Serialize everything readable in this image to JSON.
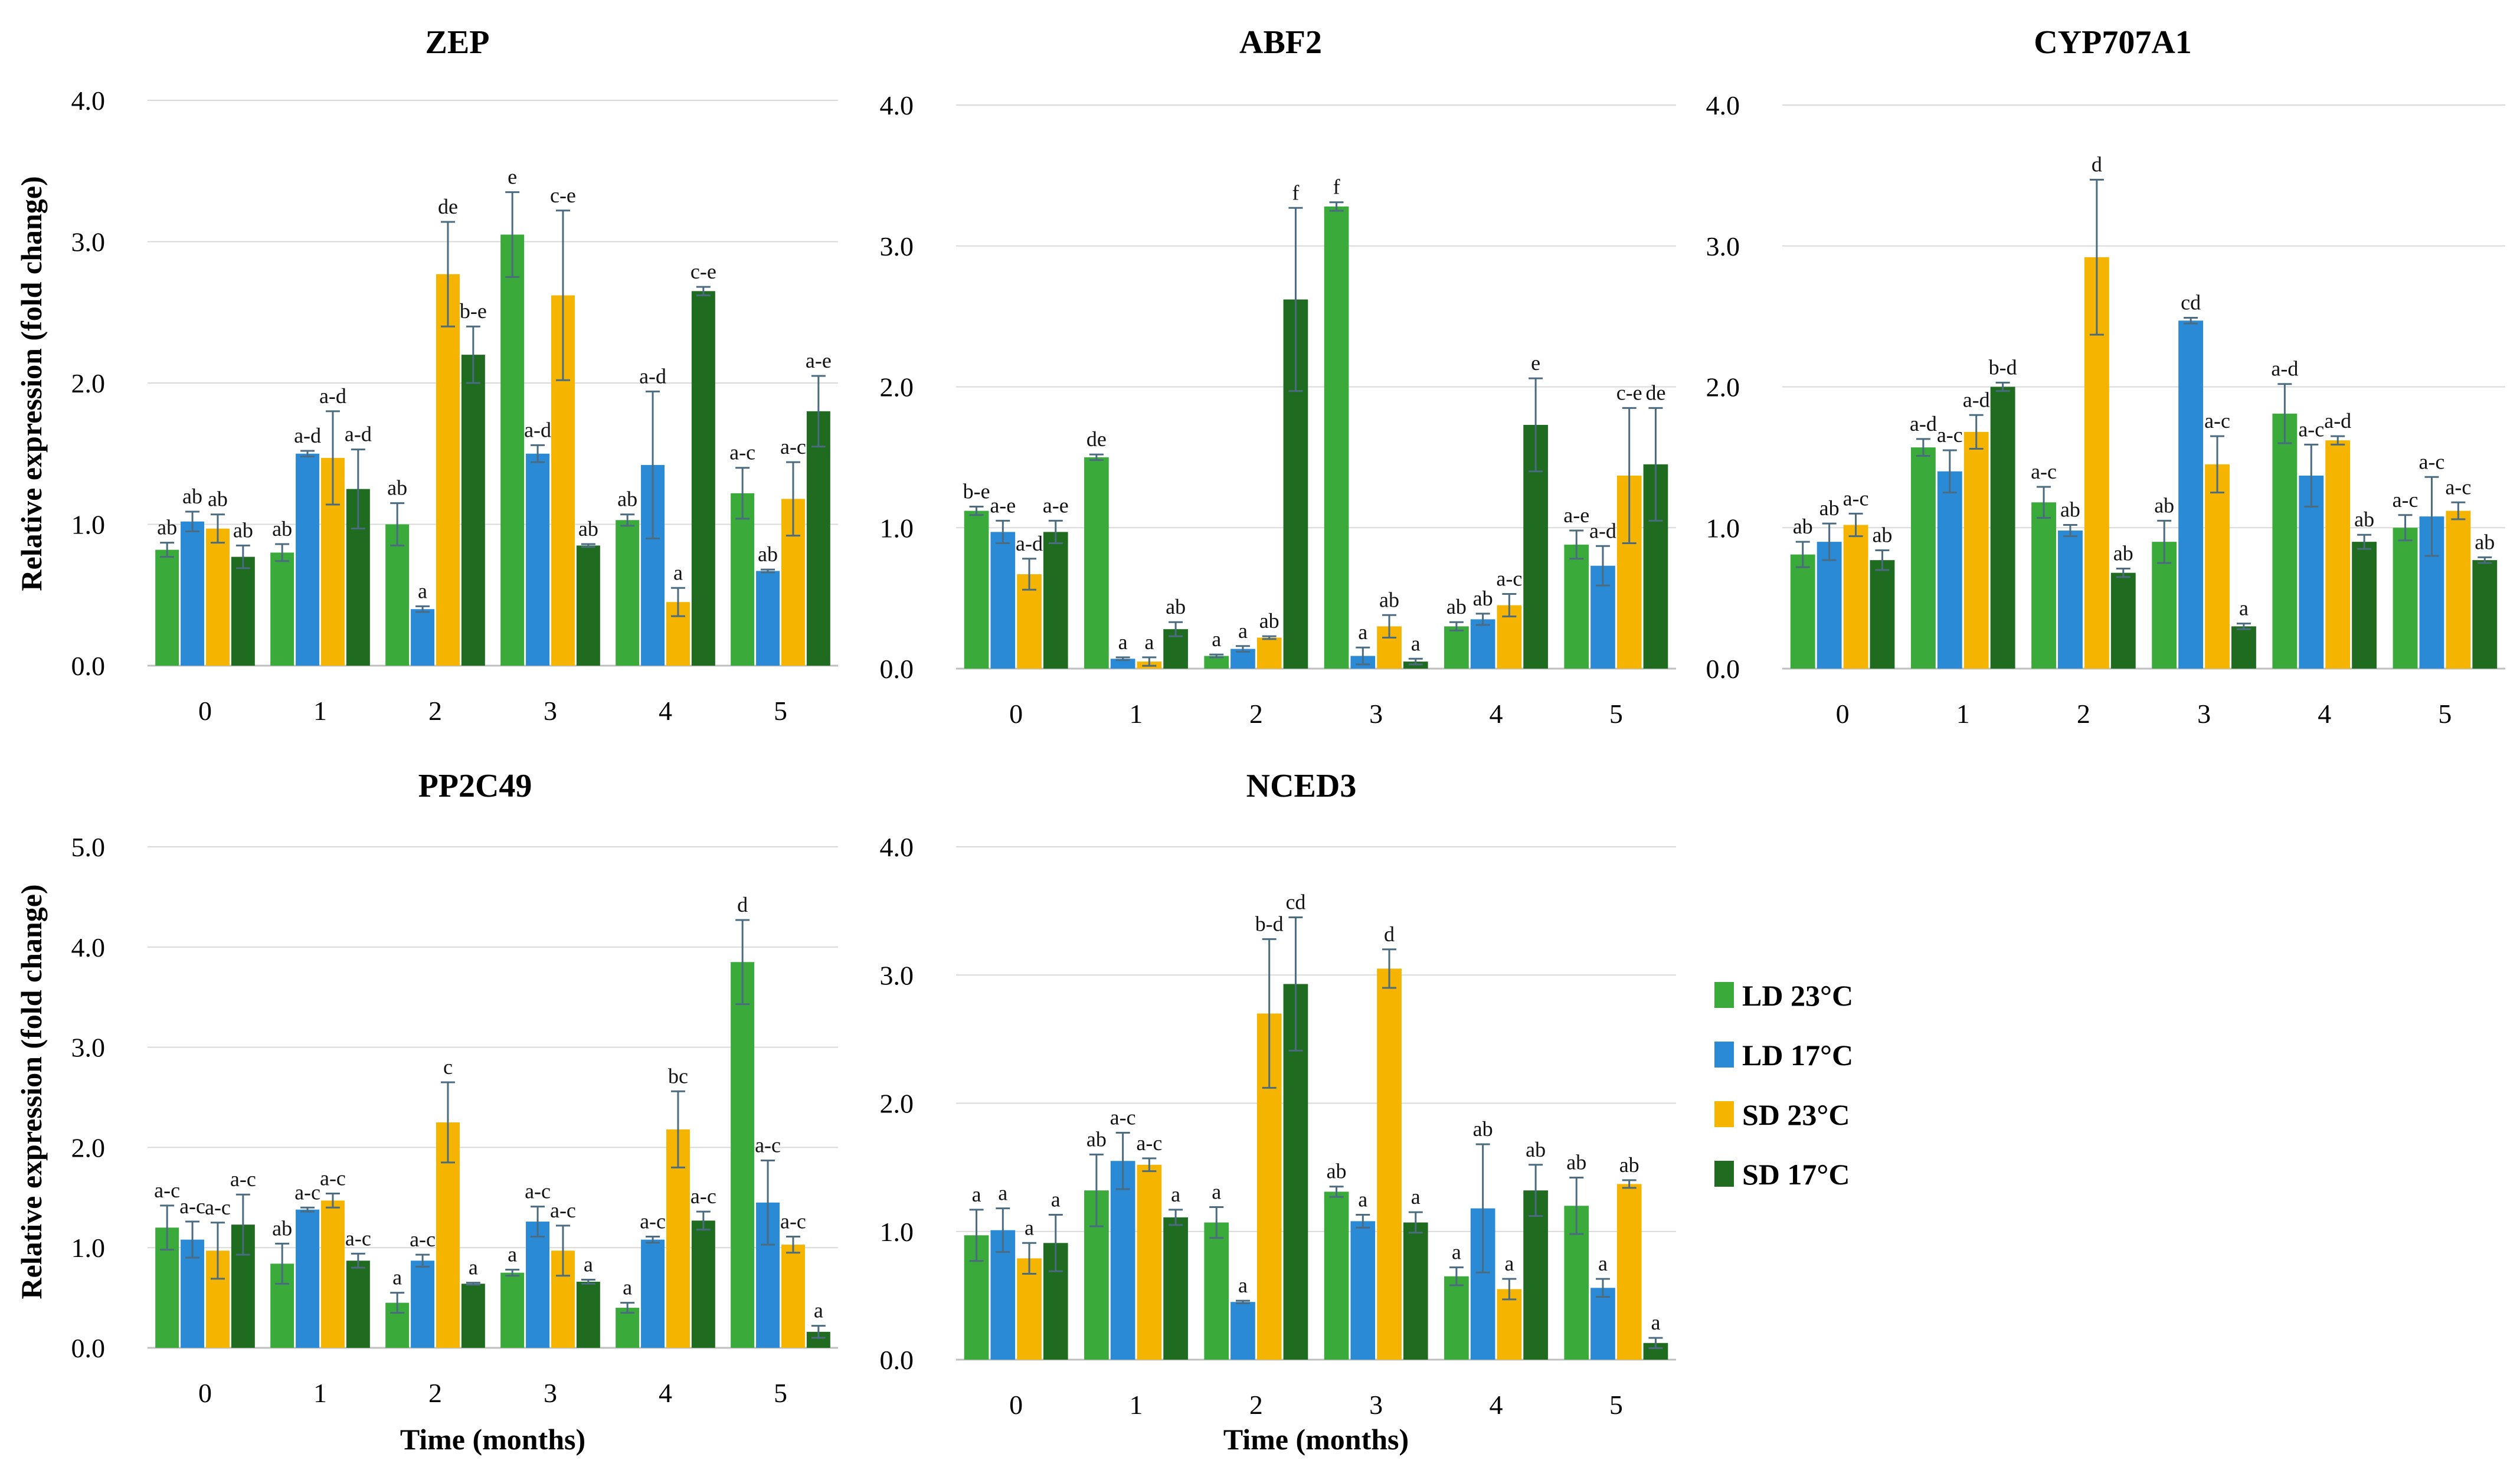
{
  "figure": {
    "legend": [
      {
        "label": "LD 23°C",
        "color": "#3aaa3a"
      },
      {
        "label": "LD 17°C",
        "color": "#2b8ad6"
      },
      {
        "label": "SD 23°C",
        "color": "#f5b400"
      },
      {
        "label": "SD 17°C",
        "color": "#1f6b1f"
      }
    ],
    "ylabel": "Relative expression (fold change)",
    "xlabel": "Time (months)"
  },
  "chart_data": [
    {
      "type": "bar",
      "title": "ZEP",
      "categories": [
        "0",
        "1",
        "2",
        "3",
        "4",
        "5"
      ],
      "ylim": [
        0,
        4
      ],
      "yticks": [
        "0.0",
        "1.0",
        "2.0",
        "3.0",
        "4.0"
      ],
      "xlabel": "",
      "ylabel": "Relative expression (fold change)",
      "series": [
        {
          "name": "LD 23°C",
          "values": [
            0.82,
            0.8,
            1.0,
            3.05,
            1.03,
            1.22
          ],
          "errors": [
            0.05,
            0.06,
            0.15,
            0.3,
            0.04,
            0.18
          ],
          "labels": [
            "ab",
            "ab",
            "ab",
            "e",
            "ab",
            "a-c"
          ]
        },
        {
          "name": "LD 17°C",
          "values": [
            1.02,
            1.5,
            0.4,
            1.5,
            1.42,
            0.67
          ],
          "errors": [
            0.07,
            0.02,
            0.02,
            0.06,
            0.52,
            0.01
          ],
          "labels": [
            "ab",
            "a-d",
            "a",
            "a-d",
            "a-d",
            "ab"
          ]
        },
        {
          "name": "SD 23°C",
          "values": [
            0.97,
            1.47,
            2.77,
            2.62,
            0.45,
            1.18
          ],
          "errors": [
            0.1,
            0.33,
            0.37,
            0.6,
            0.1,
            0.26
          ],
          "labels": [
            "ab",
            "a-d",
            "de",
            "c-e",
            "a",
            "a-c"
          ]
        },
        {
          "name": "SD 17°C",
          "values": [
            0.77,
            1.25,
            2.2,
            0.85,
            2.65,
            1.8
          ],
          "errors": [
            0.08,
            0.28,
            0.2,
            0.01,
            0.03,
            0.25
          ],
          "labels": [
            "ab",
            "a-d",
            "b-e",
            "ab",
            "c-e",
            "a-e"
          ]
        }
      ]
    },
    {
      "type": "bar",
      "title": "ABF2",
      "categories": [
        "0",
        "1",
        "2",
        "3",
        "4",
        "5"
      ],
      "ylim": [
        0,
        4
      ],
      "yticks": [
        "0.0",
        "1.0",
        "2.0",
        "3.0",
        "4.0"
      ],
      "xlabel": "",
      "ylabel": "",
      "series": [
        {
          "name": "LD 23°C",
          "values": [
            1.12,
            1.5,
            0.09,
            3.28,
            0.3,
            0.88
          ],
          "errors": [
            0.03,
            0.02,
            0.01,
            0.03,
            0.03,
            0.1
          ],
          "labels": [
            "b-e",
            "de",
            "a",
            "f",
            "ab",
            "a-e"
          ]
        },
        {
          "name": "LD 17°C",
          "values": [
            0.97,
            0.07,
            0.14,
            0.09,
            0.35,
            0.73
          ],
          "errors": [
            0.08,
            0.01,
            0.02,
            0.06,
            0.04,
            0.14
          ],
          "labels": [
            "a-e",
            "a",
            "a",
            "a",
            "ab",
            "a-d"
          ]
        },
        {
          "name": "SD 23°C",
          "values": [
            0.67,
            0.05,
            0.22,
            0.3,
            0.45,
            1.37
          ],
          "errors": [
            0.11,
            0.03,
            0.01,
            0.08,
            0.08,
            0.48
          ],
          "labels": [
            "a-d",
            "a",
            "ab",
            "ab",
            "a-c",
            "c-e"
          ]
        },
        {
          "name": "SD 17°C",
          "values": [
            0.97,
            0.28,
            2.62,
            0.05,
            1.73,
            1.45
          ],
          "errors": [
            0.08,
            0.05,
            0.65,
            0.02,
            0.33,
            0.4
          ],
          "labels": [
            "a-e",
            "ab",
            "f",
            "a",
            "e",
            "de"
          ]
        }
      ]
    },
    {
      "type": "bar",
      "title": "CYP707A1",
      "categories": [
        "0",
        "1",
        "2",
        "3",
        "4",
        "5"
      ],
      "ylim": [
        0,
        4
      ],
      "yticks": [
        "0.0",
        "1.0",
        "2.0",
        "3.0",
        "4.0"
      ],
      "xlabel": "",
      "ylabel": "",
      "series": [
        {
          "name": "LD 23°C",
          "values": [
            0.81,
            1.57,
            1.18,
            0.9,
            1.81,
            1.0
          ],
          "errors": [
            0.09,
            0.06,
            0.11,
            0.15,
            0.21,
            0.09
          ],
          "labels": [
            "ab",
            "a-d",
            "a-c",
            "ab",
            "a-d",
            "a-c"
          ]
        },
        {
          "name": "LD 17°C",
          "values": [
            0.9,
            1.4,
            0.98,
            2.47,
            1.37,
            1.08
          ],
          "errors": [
            0.13,
            0.15,
            0.04,
            0.02,
            0.22,
            0.28
          ],
          "labels": [
            "ab",
            "a-c",
            "ab",
            "cd",
            "a-c",
            "a-c"
          ]
        },
        {
          "name": "SD 23°C",
          "values": [
            1.02,
            1.68,
            2.92,
            1.45,
            1.62,
            1.12
          ],
          "errors": [
            0.08,
            0.12,
            0.55,
            0.2,
            0.03,
            0.06
          ],
          "labels": [
            "a-c",
            "a-d",
            "d",
            "a-c",
            "a-d",
            "a-c"
          ]
        },
        {
          "name": "SD 17°C",
          "values": [
            0.77,
            2.0,
            0.68,
            0.3,
            0.9,
            0.77
          ],
          "errors": [
            0.07,
            0.03,
            0.03,
            0.02,
            0.05,
            0.02
          ],
          "labels": [
            "ab",
            "b-d",
            "ab",
            "a",
            "ab",
            "ab"
          ]
        }
      ]
    },
    {
      "type": "bar",
      "title": "PP2C49",
      "categories": [
        "0",
        "1",
        "2",
        "3",
        "4",
        "5"
      ],
      "ylim": [
        0,
        5
      ],
      "yticks": [
        "0.0",
        "1.0",
        "2.0",
        "3.0",
        "4.0",
        "5.0"
      ],
      "xlabel": "Time (months)",
      "ylabel": "Relative expression (fold change)",
      "series": [
        {
          "name": "LD 23°C",
          "values": [
            1.2,
            0.84,
            0.45,
            0.75,
            0.4,
            3.85
          ],
          "errors": [
            0.22,
            0.2,
            0.1,
            0.03,
            0.05,
            0.42
          ],
          "labels": [
            "a-c",
            "ab",
            "a",
            "a",
            "a",
            "d"
          ]
        },
        {
          "name": "LD 17°C",
          "values": [
            1.08,
            1.38,
            0.87,
            1.26,
            1.08,
            1.45
          ],
          "errors": [
            0.18,
            0.02,
            0.06,
            0.15,
            0.03,
            0.42
          ],
          "labels": [
            "a-c",
            "a-c",
            "a-c",
            "a-c",
            "a-c",
            "a-c"
          ]
        },
        {
          "name": "SD 23°C",
          "values": [
            0.97,
            1.47,
            2.25,
            0.97,
            2.18,
            1.03
          ],
          "errors": [
            0.28,
            0.07,
            0.4,
            0.25,
            0.38,
            0.08
          ],
          "labels": [
            "a-c",
            "a-c",
            "c",
            "a-c",
            "bc",
            "a-c"
          ]
        },
        {
          "name": "SD 17°C",
          "values": [
            1.23,
            0.87,
            0.64,
            0.66,
            1.27,
            0.16
          ],
          "errors": [
            0.3,
            0.07,
            0.01,
            0.02,
            0.09,
            0.06
          ],
          "labels": [
            "a-c",
            "a-c",
            "a",
            "a",
            "a-c",
            "a"
          ]
        }
      ]
    },
    {
      "type": "bar",
      "title": "NCED3",
      "categories": [
        "0",
        "1",
        "2",
        "3",
        "4",
        "5"
      ],
      "ylim": [
        0,
        4
      ],
      "yticks": [
        "0.0",
        "1.0",
        "2.0",
        "3.0",
        "4.0"
      ],
      "xlabel": "Time (months)",
      "ylabel": "",
      "series": [
        {
          "name": "LD 23°C",
          "values": [
            0.97,
            1.32,
            1.07,
            1.31,
            0.65,
            1.2
          ],
          "errors": [
            0.2,
            0.28,
            0.12,
            0.04,
            0.07,
            0.22
          ],
          "labels": [
            "a",
            "ab",
            "a",
            "ab",
            "a",
            "ab"
          ]
        },
        {
          "name": "LD 17°C",
          "values": [
            1.01,
            1.55,
            0.45,
            1.08,
            1.18,
            0.56
          ],
          "errors": [
            0.17,
            0.22,
            0.01,
            0.05,
            0.5,
            0.07
          ],
          "labels": [
            "a",
            "a-c",
            "a",
            "a",
            "ab",
            "a"
          ]
        },
        {
          "name": "SD 23°C",
          "values": [
            0.79,
            1.52,
            2.7,
            3.05,
            0.55,
            1.37
          ],
          "errors": [
            0.12,
            0.05,
            0.58,
            0.15,
            0.08,
            0.03
          ],
          "labels": [
            "a",
            "a-c",
            "b-d",
            "d",
            "a",
            "ab"
          ]
        },
        {
          "name": "SD 17°C",
          "values": [
            0.91,
            1.11,
            2.93,
            1.07,
            1.32,
            0.13
          ],
          "errors": [
            0.22,
            0.06,
            0.52,
            0.08,
            0.2,
            0.04
          ],
          "labels": [
            "a",
            "a",
            "cd",
            "a",
            "ab",
            "a"
          ]
        }
      ]
    }
  ]
}
